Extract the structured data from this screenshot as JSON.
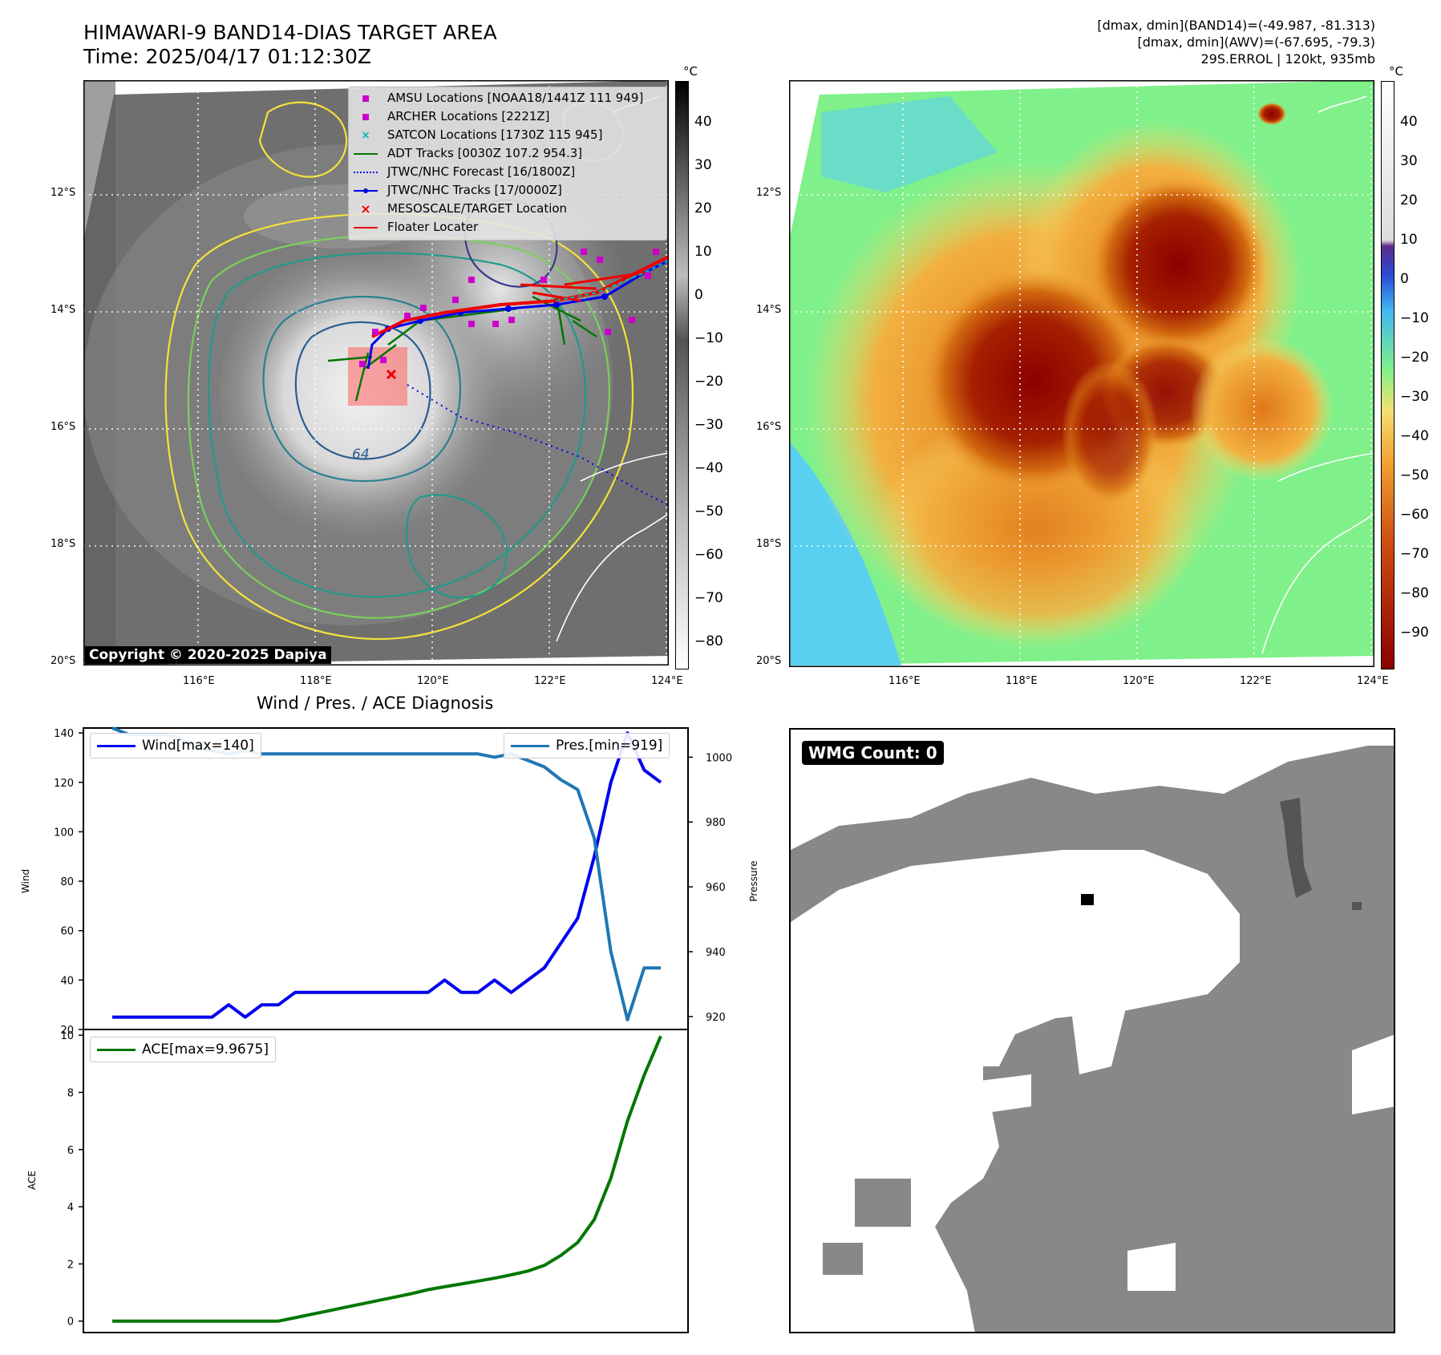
{
  "header": {
    "title_line1": "HIMAWARI-9 BAND14-DIAS TARGET AREA",
    "title_line2": "Time: 2025/04/17 01:12:30Z",
    "info_line1": "[dmax, dmin](BAND14)=(-49.987, -81.313)",
    "info_line2": "[dmax, dmin](AWV)=(-67.695, -79.3)",
    "info_line3": "29S.ERROL | 120kt, 935mb"
  },
  "map_axes": {
    "lon_labels": [
      "116°E",
      "118°E",
      "120°E",
      "122°E",
      "124°E"
    ],
    "lat_labels": [
      "12°S",
      "14°S",
      "16°S",
      "18°S",
      "20°S"
    ]
  },
  "colorbar_left": {
    "unit": "°C",
    "ticks": [
      "40",
      "30",
      "20",
      "10",
      "0",
      "−10",
      "−20",
      "−30",
      "−40",
      "−50",
      "−60",
      "−70",
      "−80"
    ]
  },
  "colorbar_right": {
    "unit": "°C",
    "ticks": [
      "40",
      "30",
      "20",
      "10",
      "0",
      "−10",
      "−20",
      "−30",
      "−40",
      "−50",
      "−60",
      "−70",
      "−80",
      "−90"
    ]
  },
  "legend": {
    "items": [
      {
        "label": "AMSU Locations [NOAA18/1441Z 111 949]",
        "color": "#cc00cc",
        "style": "square"
      },
      {
        "label": "ARCHER Locations [2221Z]",
        "color": "#cc00cc",
        "style": "square"
      },
      {
        "label": "SATCON Locations [1730Z 115 945]",
        "color": "#00bbbb",
        "style": "x"
      },
      {
        "label": "ADT Tracks [0030Z 107.2 954.3]",
        "color": "#007700",
        "style": "line"
      },
      {
        "label": "JTWC/NHC Forecast [16/1800Z]",
        "color": "#0000ee",
        "style": "dotted"
      },
      {
        "label": "JTWC/NHC Tracks [17/0000Z]",
        "color": "#0000ee",
        "style": "line-dot"
      },
      {
        "label": "MESOSCALE/TARGET Location",
        "color": "#ee0000",
        "style": "x"
      },
      {
        "label": "Floater Locater",
        "color": "#ee0000",
        "style": "line"
      }
    ]
  },
  "contour_label": "64",
  "copyright": "Copyright © 2020-2025 Dapiya",
  "wmg": {
    "label": "WMG Count: 0"
  },
  "chart_data": [
    {
      "type": "line",
      "title": "Wind / Pres. / ACE Diagnosis",
      "ylabel": "Wind",
      "ylabel_right": "Pressure",
      "ylim": [
        20,
        142
      ],
      "ylim_right": [
        916,
        1009
      ],
      "yticks": [
        20,
        40,
        60,
        80,
        100,
        120,
        140
      ],
      "yticks_right": [
        920,
        940,
        960,
        980,
        1000
      ],
      "series": [
        {
          "name": "Wind[max=140]",
          "color": "#0000ee",
          "axis": "left",
          "values": [
            25,
            25,
            25,
            25,
            25,
            25,
            25,
            30,
            25,
            30,
            30,
            35,
            35,
            35,
            35,
            35,
            35,
            35,
            35,
            35,
            40,
            35,
            35,
            40,
            35,
            40,
            45,
            55,
            65,
            90,
            120,
            140,
            125,
            120
          ]
        },
        {
          "name": "Pres.[min=919]",
          "color": "#1f77b4",
          "axis": "right",
          "values": [
            1009,
            1007,
            1007,
            1007,
            1006,
            1003,
            1002,
            1001,
            1002,
            1001,
            1001,
            1001,
            1001,
            1001,
            1001,
            1001,
            1001,
            1001,
            1001,
            1001,
            1001,
            1001,
            1001,
            1000,
            1001,
            999,
            997,
            993,
            990,
            975,
            940,
            919,
            935,
            935
          ]
        }
      ]
    },
    {
      "type": "line",
      "ylabel": "ACE",
      "ylim": [
        -0.4,
        10.2
      ],
      "yticks": [
        0,
        2,
        4,
        6,
        8,
        10
      ],
      "series": [
        {
          "name": "ACE[max=9.9675]",
          "color": "#007700",
          "values": [
            0,
            0,
            0,
            0,
            0,
            0,
            0,
            0,
            0,
            0,
            0,
            0.12,
            0.24,
            0.36,
            0.48,
            0.6,
            0.72,
            0.84,
            0.96,
            1.1,
            1.2,
            1.3,
            1.4,
            1.5,
            1.62,
            1.75,
            1.95,
            2.3,
            2.75,
            3.55,
            5.0,
            7.0,
            8.6,
            9.9675
          ]
        }
      ]
    }
  ]
}
